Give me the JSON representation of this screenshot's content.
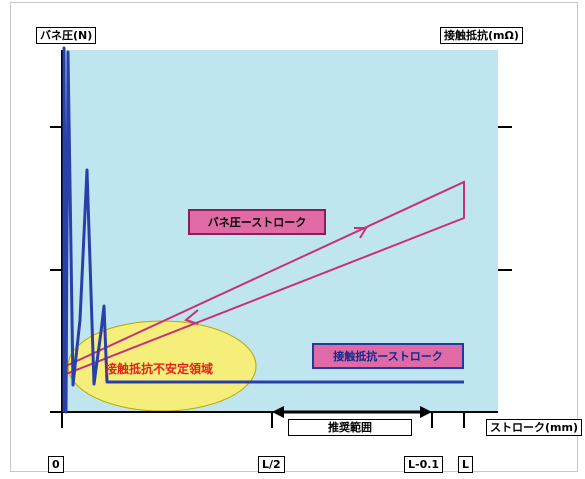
{
  "chart_data": {
    "type": "line",
    "y_left_label": "バネ圧(N)",
    "y_right_label": "接触抵抗(mΩ)",
    "x_label": "ストローク(mm)",
    "x_ticks": [
      "0",
      "L/2",
      "L-0.1",
      "L"
    ],
    "series": [
      {
        "name": "バネ圧ーストローク",
        "color": "#c8307a"
      },
      {
        "name": "接触抵抗ーストローク",
        "color": "#2a40a8"
      }
    ],
    "annotations": {
      "unstable_region": "接触抵抗不安定領域",
      "recommended_range": "推奨範囲"
    },
    "colors": {
      "plot_background": "#bfe6ee",
      "spring_curve": "#c8307a",
      "resistance_curve": "#2a40a8",
      "unstable_ellipse": "#f5ee7a"
    }
  }
}
